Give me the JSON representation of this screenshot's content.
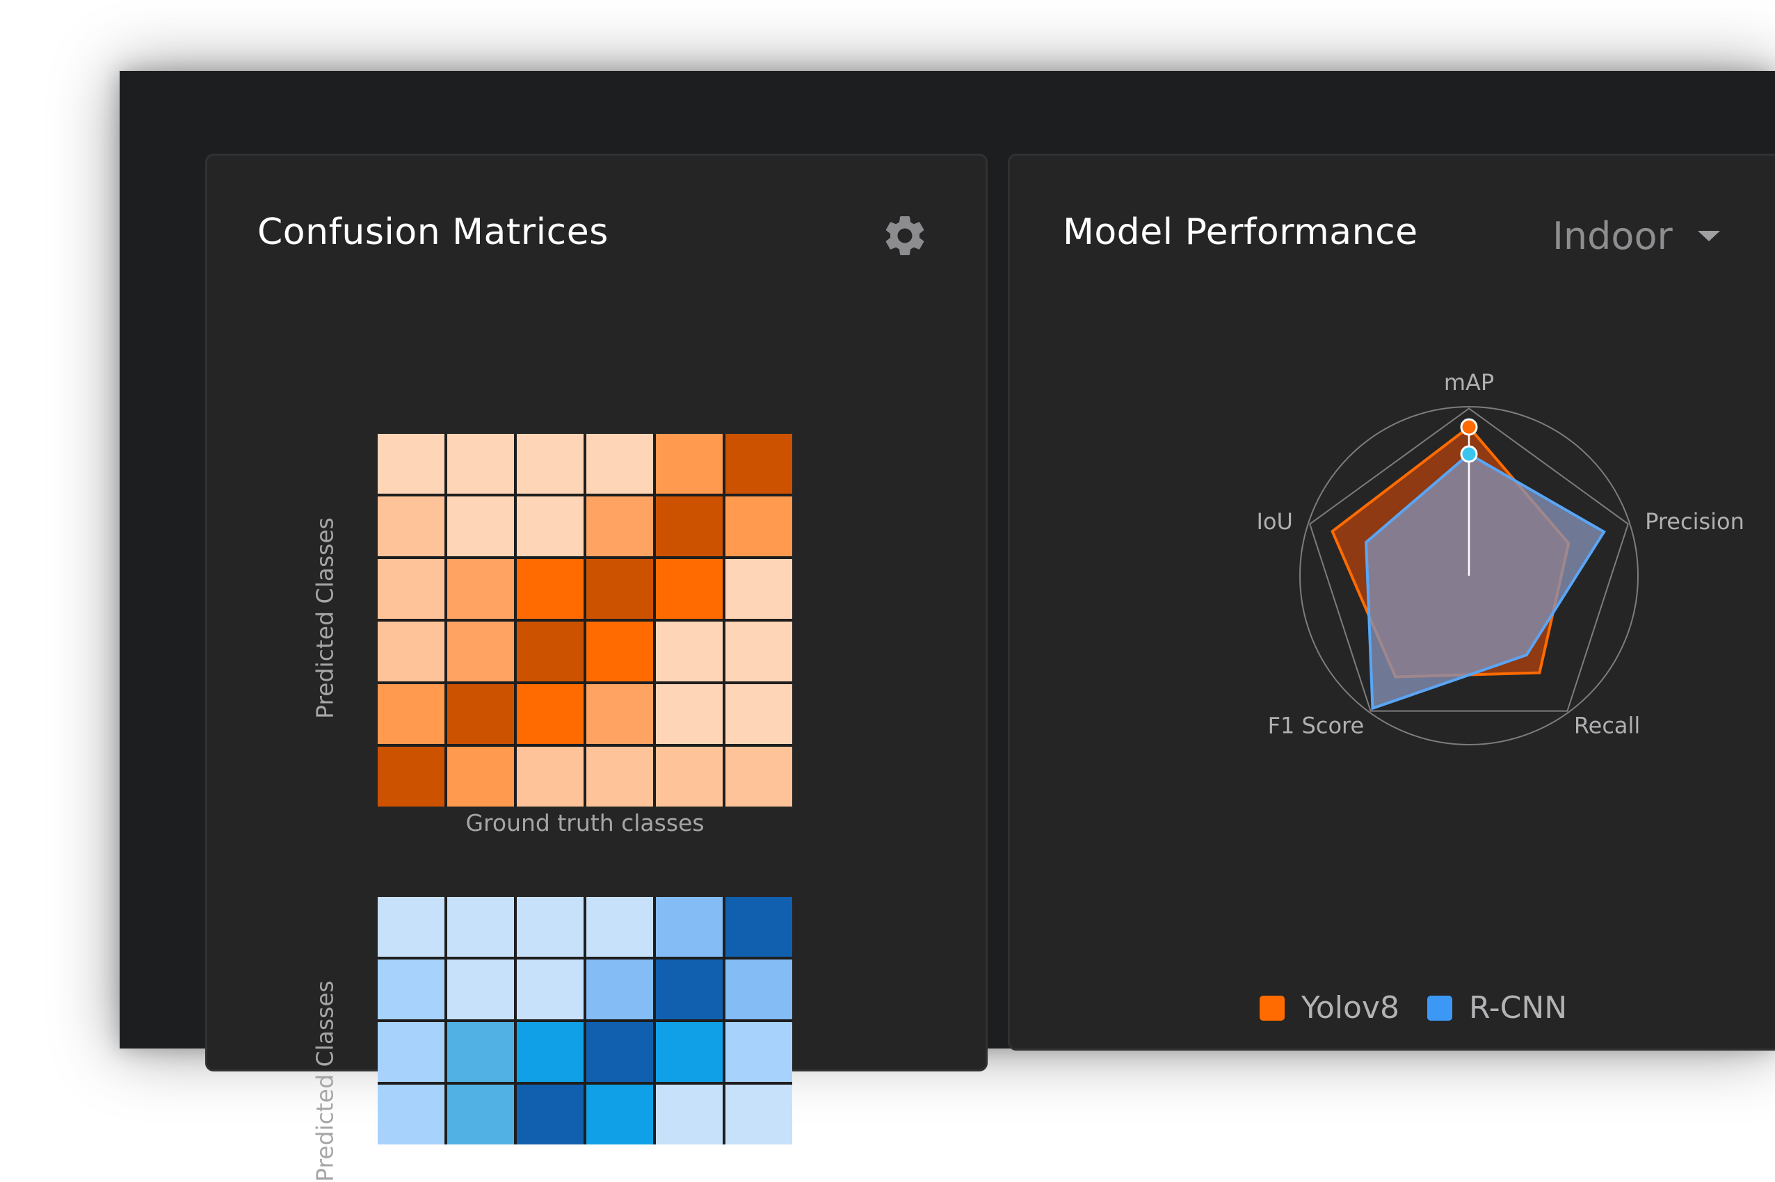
{
  "panels": {
    "confusion": {
      "title": "Confusion Matrices"
    },
    "performance": {
      "title": "Model Performance",
      "filter": {
        "selected": "Indoor"
      }
    }
  },
  "icons": {
    "settings": "gear-icon",
    "dropdown": "caret-down-icon"
  },
  "colors": {
    "background": "#1d1e1f",
    "panel": "#252526",
    "yolo": "#ff6b00",
    "rcnn": "#3b99f5",
    "highlight": "#39c5f0"
  },
  "chart_data": [
    {
      "type": "heatmap",
      "name": "orange-matrix",
      "xlabel": "Ground truth classes",
      "ylabel": "Predicted Classes",
      "palette": [
        "#fed5b6",
        "#fec399",
        "#fea362",
        "#ff9a4f",
        "#ff6b00",
        "#cc5200"
      ],
      "levels": [
        [
          0,
          0,
          0,
          0,
          3,
          5
        ],
        [
          1,
          0,
          0,
          2,
          5,
          3
        ],
        [
          1,
          2,
          4,
          5,
          4,
          0
        ],
        [
          1,
          2,
          5,
          4,
          0,
          0
        ],
        [
          3,
          5,
          4,
          2,
          0,
          0
        ],
        [
          5,
          3,
          1,
          1,
          1,
          1
        ]
      ]
    },
    {
      "type": "heatmap",
      "name": "blue-matrix",
      "xlabel": "",
      "ylabel": "Predicted Classes",
      "palette": [
        "#c8e1fa",
        "#a7d2fb",
        "#84bcf5",
        "#52b1e4",
        "#0fa0e8",
        "#1160b0"
      ],
      "levels": [
        [
          0,
          0,
          0,
          0,
          2,
          5
        ],
        [
          1,
          0,
          0,
          2,
          5,
          2
        ],
        [
          1,
          3,
          4,
          5,
          4,
          1
        ],
        [
          1,
          3,
          5,
          4,
          0,
          0
        ]
      ]
    },
    {
      "type": "radar",
      "name": "model-performance",
      "axes": [
        "mAP",
        "Precision",
        "Recall",
        "F1 Score",
        "IoU"
      ],
      "range": [
        0,
        1
      ],
      "highlight_axis": "mAP",
      "series": [
        {
          "name": "Yolov8",
          "values": [
            0.88,
            0.62,
            0.71,
            0.74,
            0.85
          ],
          "color": "#ff6b00",
          "fill": "#8f3a12"
        },
        {
          "name": "R-CNN",
          "values": [
            0.72,
            0.84,
            0.58,
            0.97,
            0.64
          ],
          "color": "#5aa5f5",
          "fill": "#8490b3"
        }
      ]
    }
  ]
}
